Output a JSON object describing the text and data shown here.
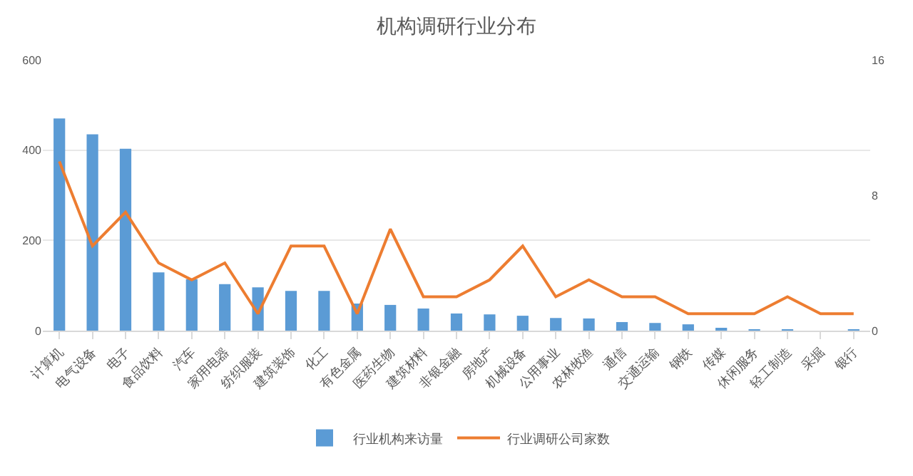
{
  "chart_data": {
    "type": "bar",
    "title": "机构调研行业分布",
    "categories": [
      "计算机",
      "电气设备",
      "电子",
      "食品饮料",
      "汽车",
      "家用电器",
      "纺织服装",
      "建筑装饰",
      "化工",
      "有色金属",
      "医药生物",
      "建筑材料",
      "非银金融",
      "房地产",
      "机械设备",
      "公用事业",
      "农林牧渔",
      "通信",
      "交通运输",
      "钢铁",
      "传媒",
      "休闲服务",
      "轻工制造",
      "采掘",
      "银行"
    ],
    "series": [
      {
        "name": "行业机构来访量",
        "color": "#5b9bd5",
        "values": [
          470,
          435,
          403,
          129,
          114,
          103,
          96,
          88,
          88,
          60,
          57,
          49,
          38,
          36,
          33,
          28,
          27,
          19,
          17,
          14,
          6,
          3,
          3,
          0,
          2
        ]
      },
      {
        "name": "行业调研公司家数",
        "type": "line",
        "axis": "y2",
        "color": "#ed7d31",
        "values": [
          10,
          5,
          7,
          4,
          3,
          4,
          1,
          5,
          5,
          1,
          6,
          2,
          2,
          3,
          5,
          2,
          3,
          2,
          2,
          1,
          1,
          1,
          2,
          1,
          1
        ]
      }
    ],
    "ylim": [
      0,
      600
    ],
    "yticks": [
      0,
      200,
      400,
      600
    ],
    "y2lim": [
      0,
      16
    ],
    "y2ticks": [
      0,
      8,
      16
    ],
    "grid": "y",
    "legend": "bottom",
    "marker": "none",
    "line_style": "solid"
  }
}
